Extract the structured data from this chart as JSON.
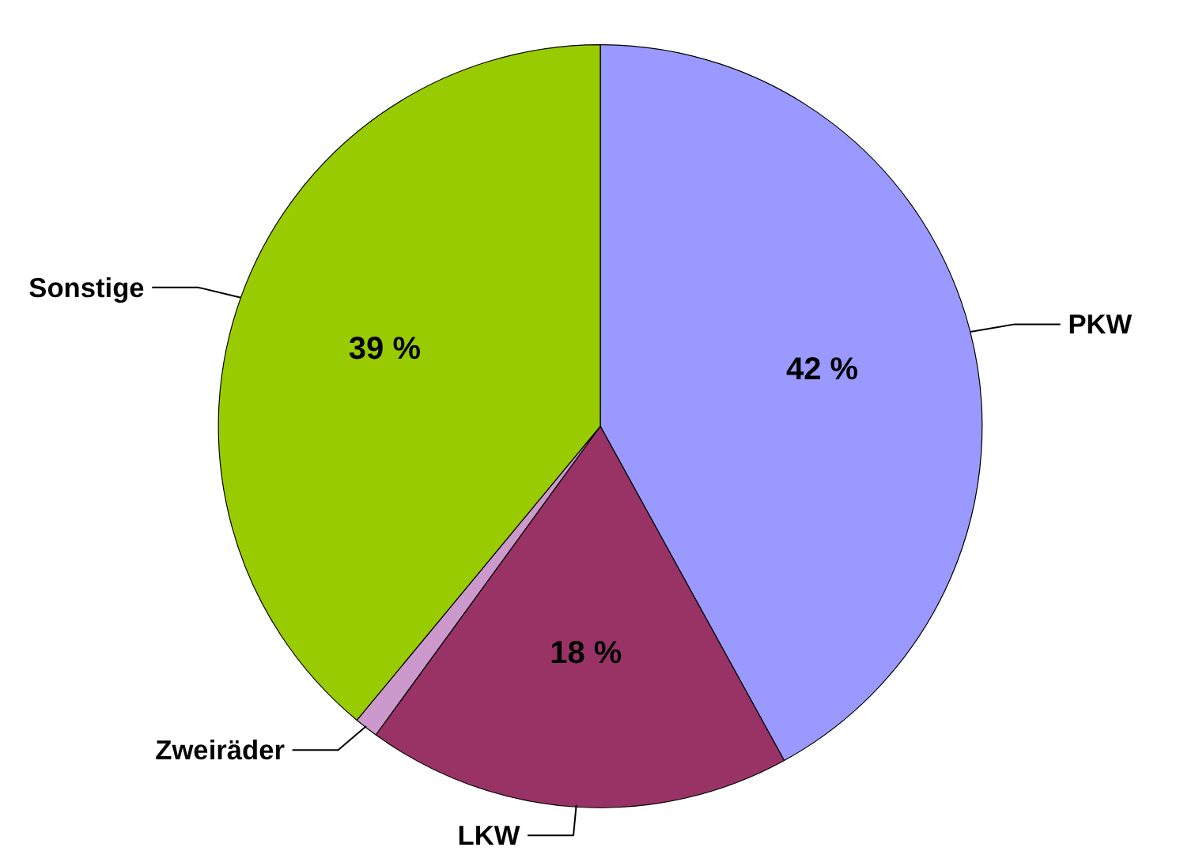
{
  "chart_data": {
    "type": "pie",
    "categories": [
      "PKW",
      "LKW",
      "Zweiräder",
      "Sonstige"
    ],
    "values": [
      42,
      18,
      1,
      39
    ],
    "colors": [
      "#9999ff",
      "#993366",
      "#cc99cc",
      "#99cc00"
    ],
    "value_labels": [
      "42 %",
      "18 %",
      null,
      "39 %"
    ]
  }
}
